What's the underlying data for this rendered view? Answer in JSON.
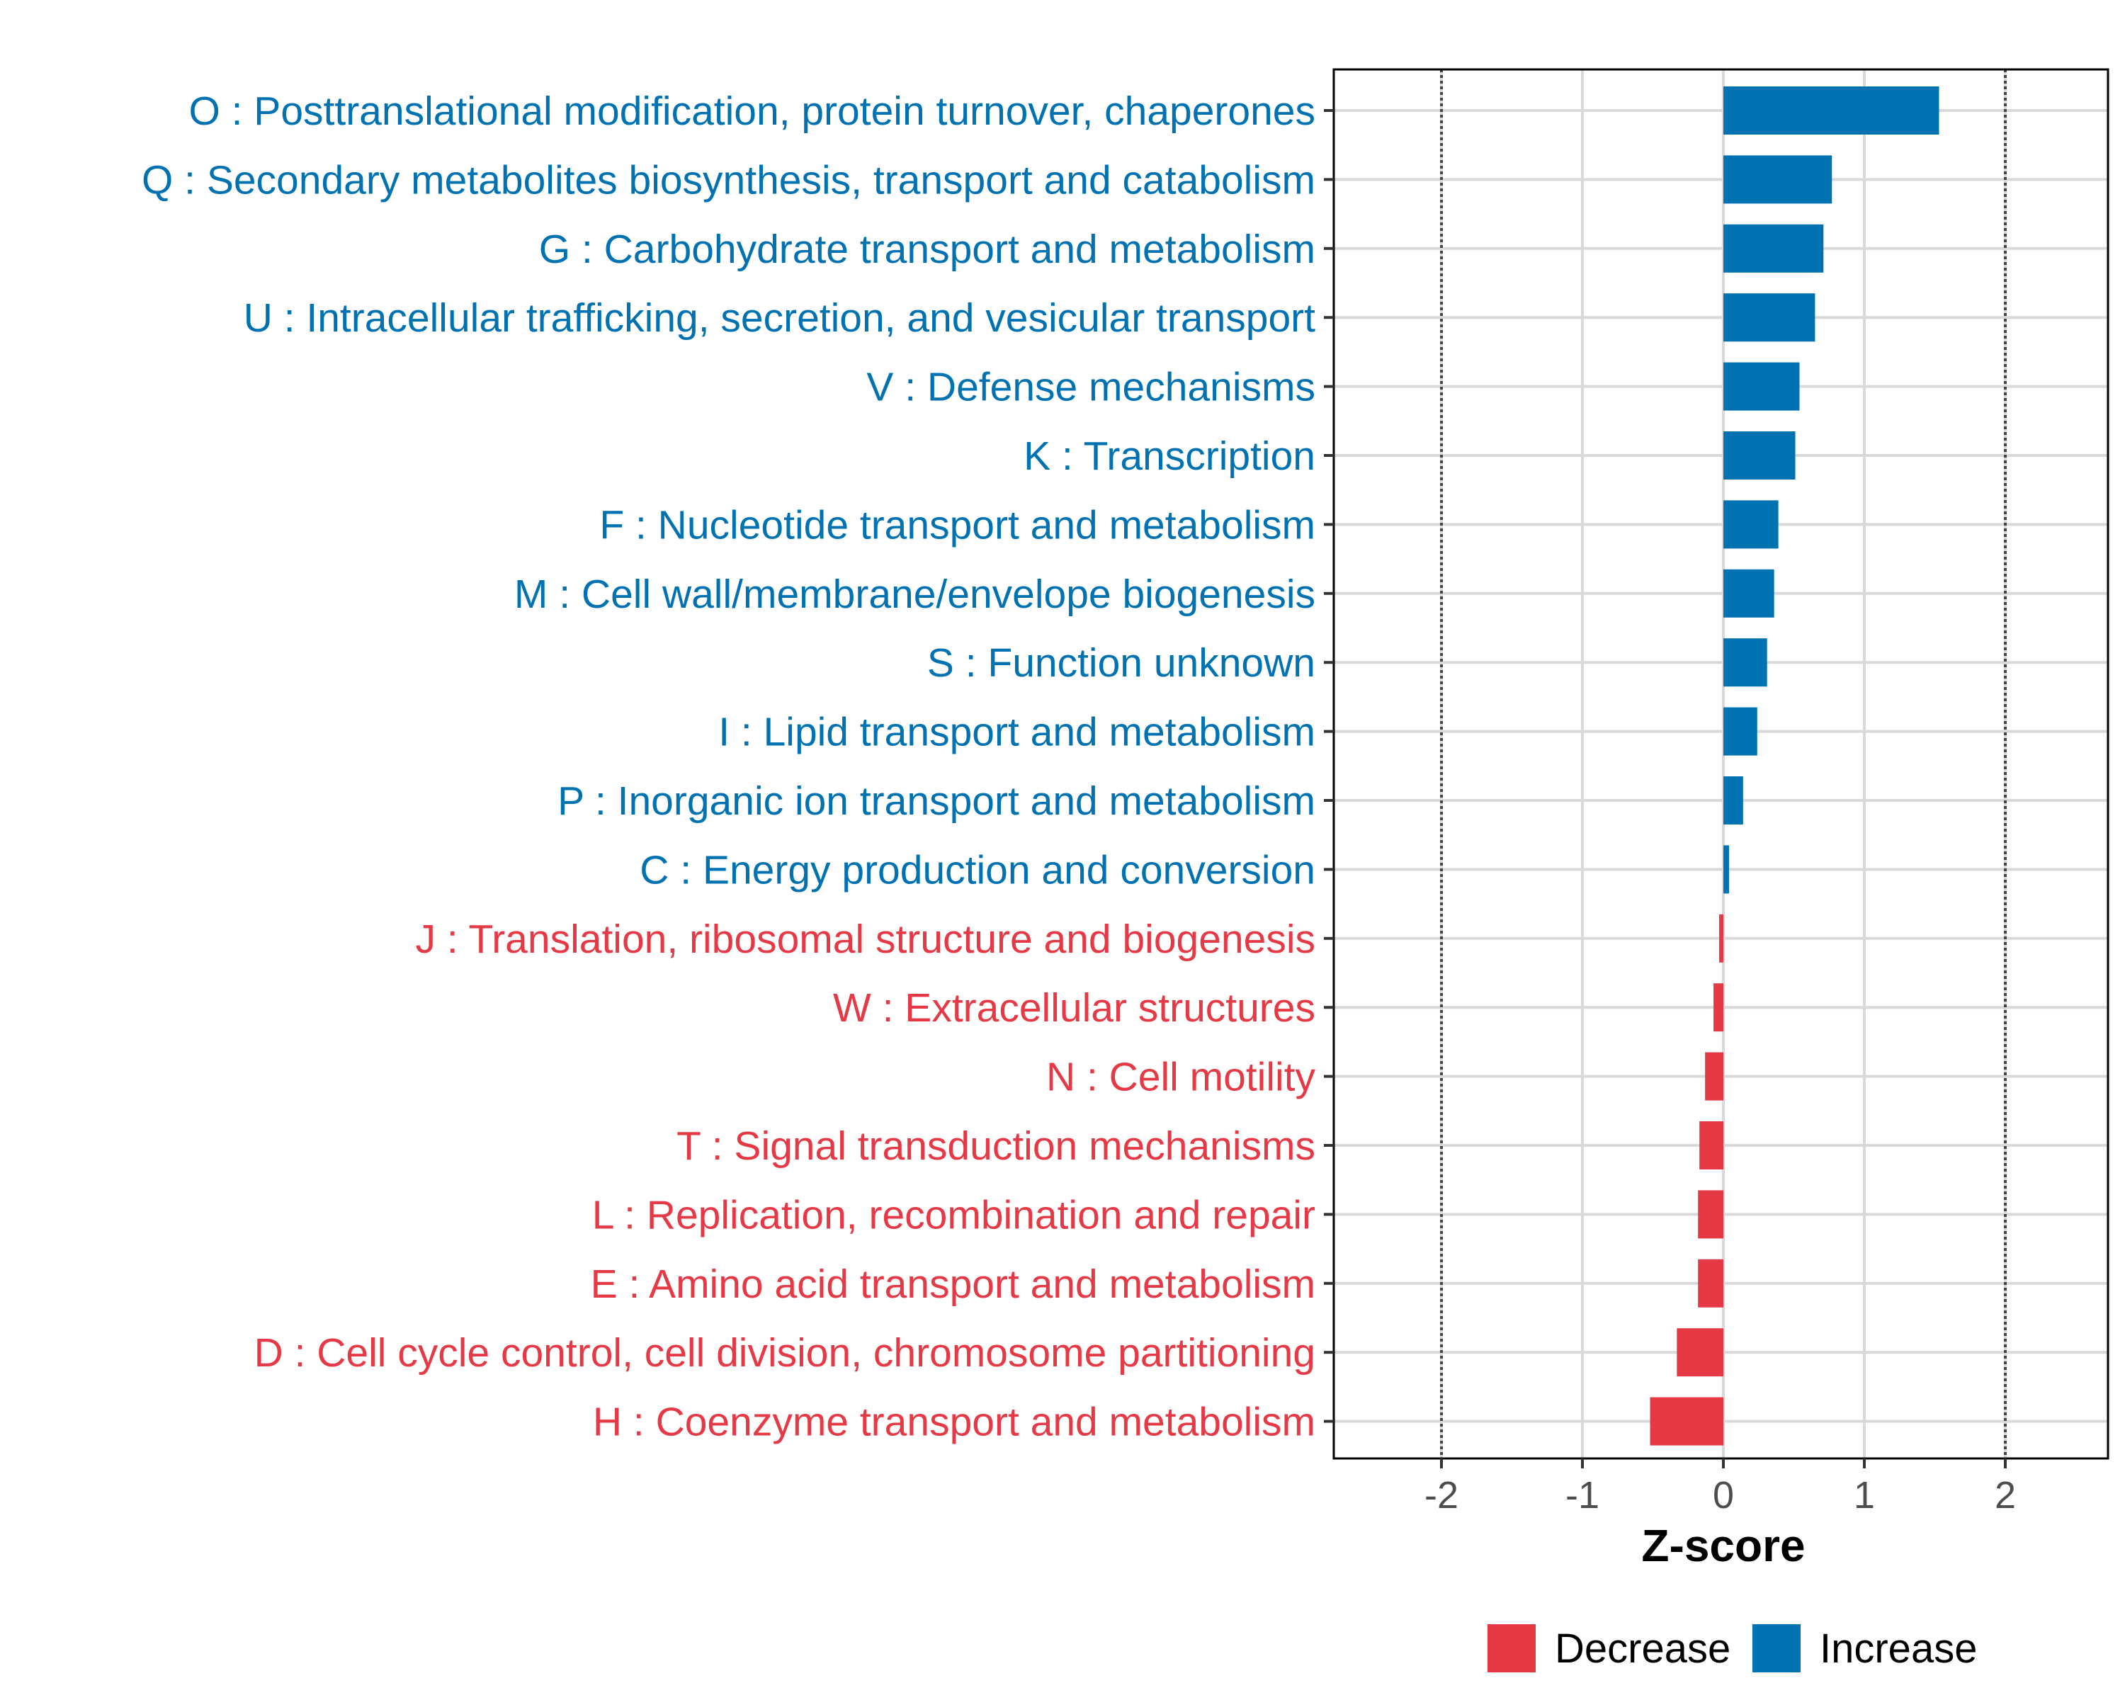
{
  "chart_data": {
    "type": "bar",
    "orientation": "horizontal",
    "title": "",
    "xlabel": "Z-score",
    "ylabel": "",
    "xlim": [
      -2.8,
      2.7
    ],
    "xticks": [
      -2,
      -1,
      0,
      1,
      2
    ],
    "xtick_labels": [
      "-2",
      "-1",
      "0",
      "1",
      "2"
    ],
    "reference_lines": [
      -2,
      2
    ],
    "grid": true,
    "legend_position": "bottom",
    "colors": {
      "Increase": "#0072B2",
      "Decrease": "#E63946"
    },
    "legend": [
      {
        "label": "Decrease",
        "color": "#E63946"
      },
      {
        "label": "Increase",
        "color": "#0072B2"
      }
    ],
    "categories": [
      "O : Posttranslational modification, protein turnover, chaperones",
      "Q : Secondary metabolites biosynthesis, transport and catabolism",
      "G : Carbohydrate transport and metabolism",
      "U : Intracellular trafficking, secretion, and vesicular transport",
      "V : Defense mechanisms",
      "K : Transcription",
      "F : Nucleotide transport and metabolism",
      "M : Cell wall/membrane/envelope biogenesis",
      "S : Function unknown",
      "I : Lipid transport and metabolism",
      "P : Inorganic ion transport and metabolism",
      "C : Energy production and conversion",
      "J : Translation, ribosomal structure and biogenesis",
      "W : Extracellular structures",
      "N : Cell motility",
      "T : Signal transduction mechanisms",
      "L : Replication, recombination and repair",
      "E : Amino acid transport and metabolism",
      "D : Cell cycle control, cell division, chromosome partitioning",
      "H : Coenzyme transport and metabolism"
    ],
    "values": [
      1.53,
      0.77,
      0.71,
      0.65,
      0.54,
      0.51,
      0.39,
      0.36,
      0.31,
      0.24,
      0.14,
      0.04,
      -0.03,
      -0.07,
      -0.13,
      -0.17,
      -0.18,
      -0.18,
      -0.33,
      -0.52
    ],
    "groups": [
      "Increase",
      "Increase",
      "Increase",
      "Increase",
      "Increase",
      "Increase",
      "Increase",
      "Increase",
      "Increase",
      "Increase",
      "Increase",
      "Increase",
      "Decrease",
      "Decrease",
      "Decrease",
      "Decrease",
      "Decrease",
      "Decrease",
      "Decrease",
      "Decrease"
    ]
  }
}
